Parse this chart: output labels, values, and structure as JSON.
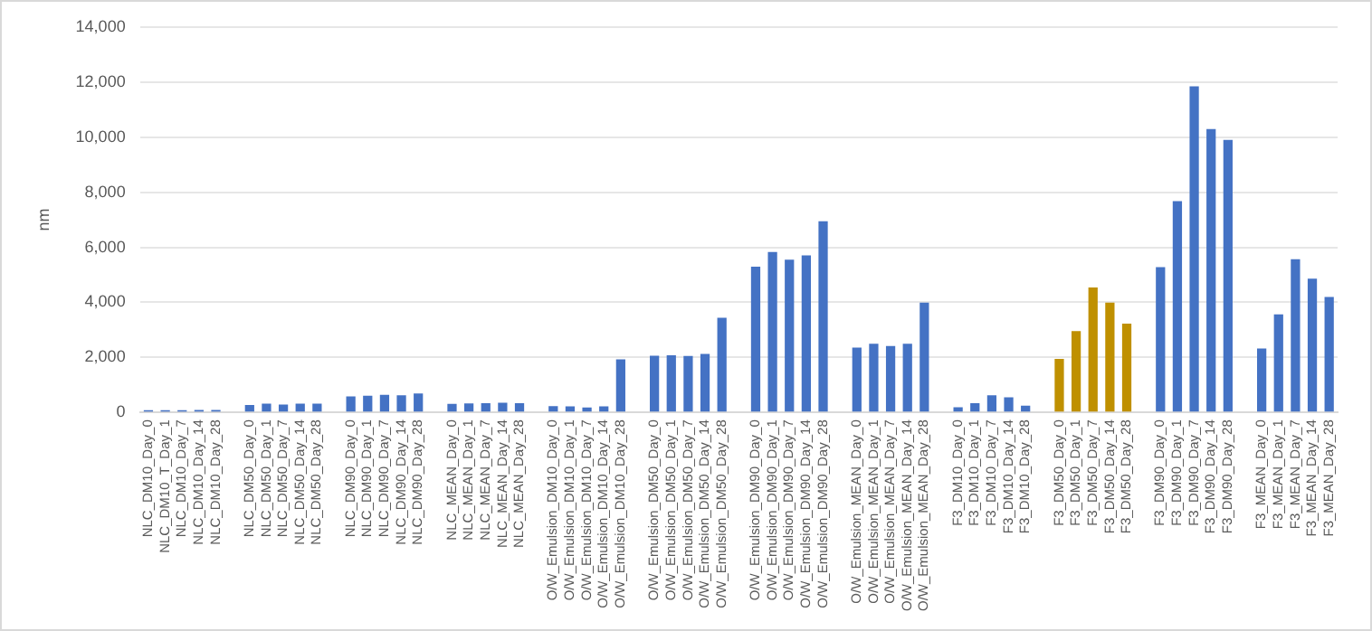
{
  "chart_data": {
    "type": "bar",
    "ylabel": "nm",
    "categories": [
      "NLC_DM10_Day_0",
      "NLC_DM10_T_Day_1",
      "NLC_DM10_Day_7",
      "NLC_DM10_Day_14",
      "NLC_DM10_Day_28",
      null,
      "NLC_DM50_Day_0",
      "NLC_DM50_Day_1",
      "NLC_DM50_Day_7",
      "NLC_DM50_Day_14",
      "NLC_DM50_Day_28",
      null,
      "NLC_DM90_Day_0",
      "NLC_DM90_Day_1",
      "NLC_DM90_Day_7",
      "NLC_DM90_Day_14",
      "NLC_DM90_Day_28",
      null,
      "NLC_MEAN_Day_0",
      "NLC_MEAN_Day_1",
      "NLC_MEAN_Day_7",
      "NLC_MEAN_Day_14",
      "NLC_MEAN_Day_28",
      null,
      "O/W_Emulsion_DM10_Day_0",
      "O/W_Emulsion_DM10_Day_1",
      "O/W_Emulsion_DM10_Day_7",
      "O/W_Emulsion_DM10_Day_14",
      "O/W_Emulsion_DM10_Day_28",
      null,
      "O/W_Emulsion_DM50_Day_0",
      "O/W_Emulsion_DM50_Day_1",
      "O/W_Emulsion_DM50_Day_7",
      "O/W_Emulsion_DM50_Day_14",
      "O/W_Emulsion_DM50_Day_28",
      null,
      "O/W_Emulsion_DM90_Day_0",
      "O/W_Emulsion_DM90_Day_1",
      "O/W_Emulsion_DM90_Day_7",
      "O/W_Emulsion_DM90_Day_14",
      "O/W_Emulsion_DM90_Day_28",
      null,
      "O/W_Emulsion_MEAN_Day_0",
      "O/W_Emulsion_MEAN_Day_1",
      "O/W_Emulsion_MEAN_Day_7",
      "O/W_Emulsion_MEAN_Day_14",
      "O/W_Emulsion_MEAN_Day_28",
      null,
      "F3_DM10_Day_0",
      "F3_DM10_Day_1",
      "F3_DM10_Day_7",
      "F3_DM10_Day_14",
      "F3_DM10_Day_28",
      null,
      "F3_DM50_Day_0",
      "F3_DM50_Day_1",
      "F3_DM50_Day_7",
      "F3_DM50_Day_14",
      "F3_DM50_Day_28",
      null,
      "F3_DM90_Day_0",
      "F3_DM90_Day_1",
      "F3_DM90_Day_7",
      "F3_DM90_Day_14",
      "F3_DM90_Day_28",
      null,
      "F3_MEAN_Day_0",
      "F3_MEAN_Day_1",
      "F3_MEAN_Day_7",
      "F3_MEAN_Day_14",
      "F3_MEAN_Day_28"
    ],
    "values": [
      80,
      80,
      80,
      90,
      90,
      null,
      270,
      320,
      290,
      320,
      320,
      null,
      580,
      610,
      640,
      620,
      690,
      null,
      310,
      330,
      340,
      350,
      340,
      null,
      230,
      220,
      180,
      220,
      1930,
      null,
      2060,
      2080,
      2050,
      2130,
      3440,
      null,
      5300,
      5830,
      5550,
      5710,
      6950,
      null,
      2360,
      2500,
      2410,
      2500,
      3990,
      null,
      190,
      340,
      620,
      550,
      250,
      null,
      1950,
      2960,
      4540,
      3990,
      3230,
      null,
      5280,
      7680,
      11850,
      10300,
      9900,
      null,
      2320,
      3560,
      5570,
      4860,
      4200
    ],
    "colors": [
      "#4472c4",
      "#4472c4",
      "#4472c4",
      "#4472c4",
      "#4472c4",
      null,
      "#4472c4",
      "#4472c4",
      "#4472c4",
      "#4472c4",
      "#4472c4",
      null,
      "#4472c4",
      "#4472c4",
      "#4472c4",
      "#4472c4",
      "#4472c4",
      null,
      "#4472c4",
      "#4472c4",
      "#4472c4",
      "#4472c4",
      "#4472c4",
      null,
      "#4472c4",
      "#4472c4",
      "#4472c4",
      "#4472c4",
      "#4472c4",
      null,
      "#4472c4",
      "#4472c4",
      "#4472c4",
      "#4472c4",
      "#4472c4",
      null,
      "#4472c4",
      "#4472c4",
      "#4472c4",
      "#4472c4",
      "#4472c4",
      null,
      "#4472c4",
      "#4472c4",
      "#4472c4",
      "#4472c4",
      "#4472c4",
      null,
      "#4472c4",
      "#4472c4",
      "#4472c4",
      "#4472c4",
      "#4472c4",
      null,
      "#bf9000",
      "#bf9000",
      "#bf9000",
      "#bf9000",
      "#bf9000",
      null,
      "#4472c4",
      "#4472c4",
      "#4472c4",
      "#4472c4",
      "#4472c4",
      null,
      "#4472c4",
      "#4472c4",
      "#4472c4",
      "#4472c4",
      "#4472c4"
    ],
    "ylim": [
      0,
      14000
    ],
    "yticks": [
      0,
      {
        "value": 2000,
        "label": "2,000"
      },
      {
        "value": 4000,
        "label": "4,000"
      },
      {
        "value": 6000,
        "label": "6,000"
      },
      {
        "value": 8000,
        "label": "8,000"
      },
      {
        "value": 10000,
        "label": "10,000"
      },
      {
        "value": 12000,
        "label": "12,000"
      },
      {
        "value": 14000,
        "label": "14,000"
      }
    ],
    "grid": "y"
  }
}
